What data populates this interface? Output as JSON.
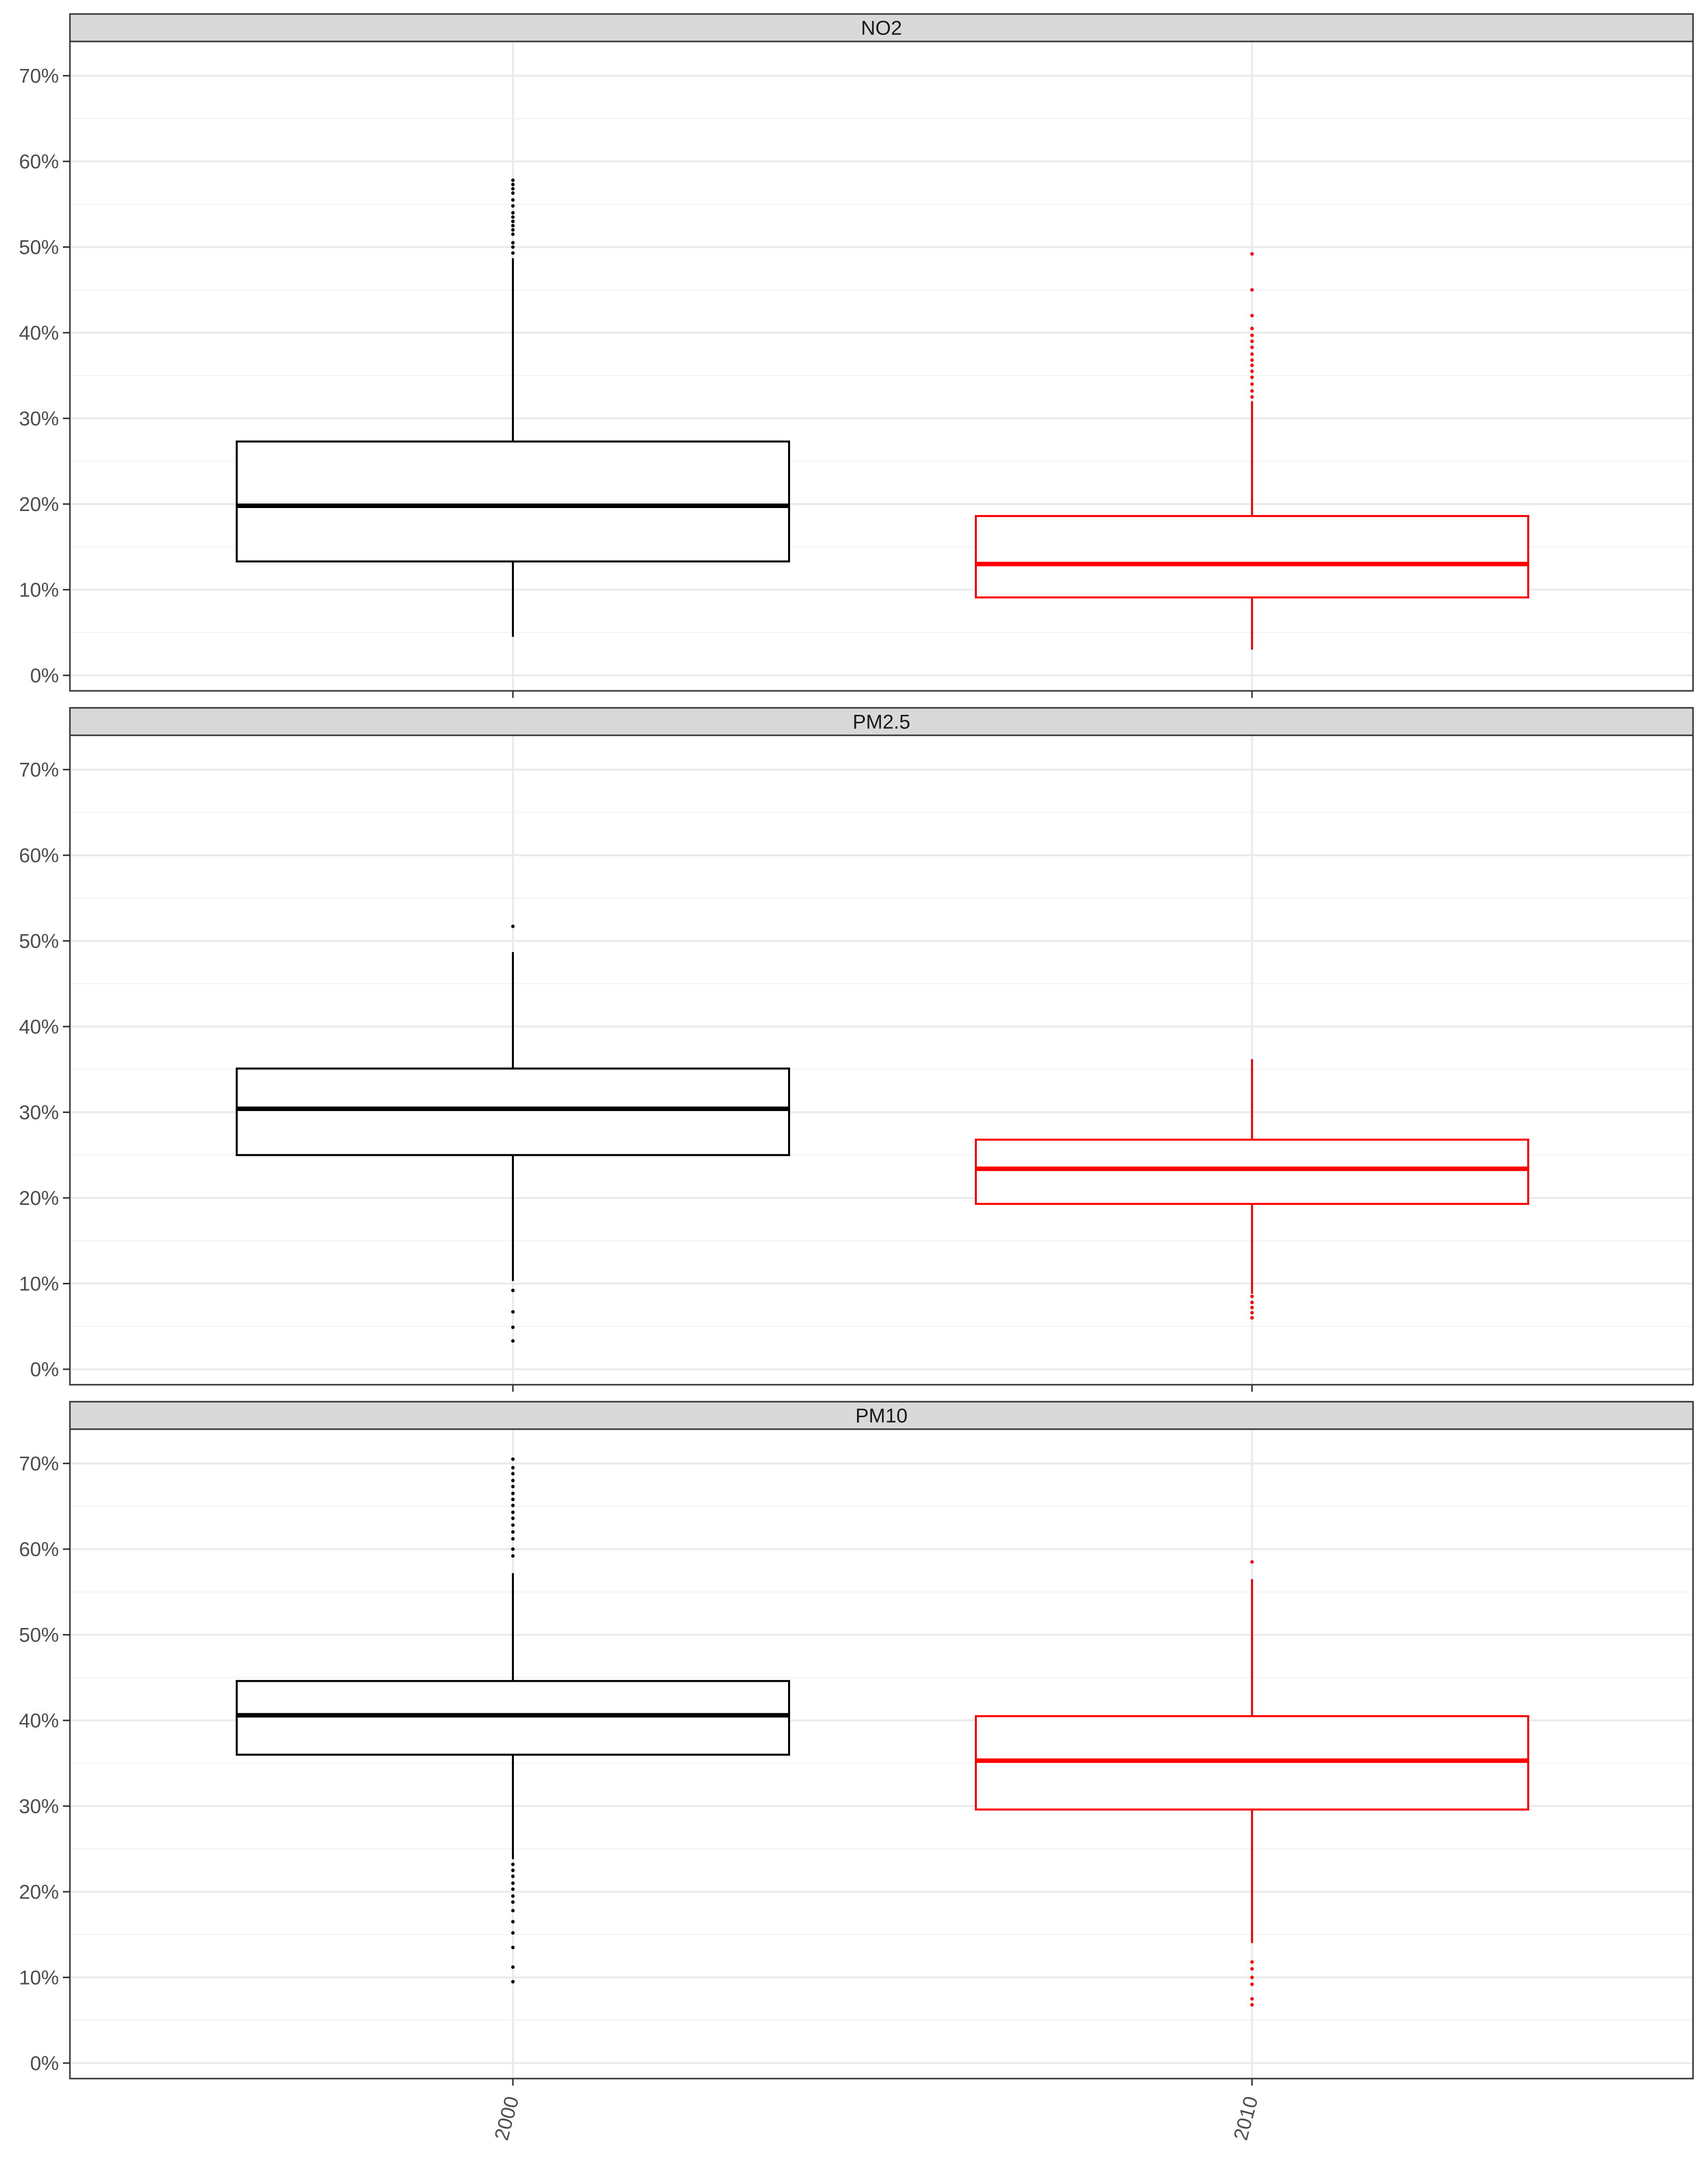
{
  "chart_data": [
    {
      "type": "boxplot",
      "title": "NO2",
      "categories": [
        "2000",
        "2010"
      ],
      "ylim": [
        0,
        0.74
      ],
      "yticks": [
        0,
        0.1,
        0.2,
        0.3,
        0.4,
        0.5,
        0.6,
        0.7
      ],
      "ytick_labels": [
        "0%",
        "10%",
        "20%",
        "30%",
        "40%",
        "50%",
        "60%",
        "70%"
      ],
      "grid": true,
      "series": [
        {
          "category": "2000",
          "color": "#000000",
          "min": 0.045,
          "q1": 0.133,
          "median": 0.198,
          "q3": 0.273,
          "max": 0.487,
          "outliers": [
            0.493,
            0.5,
            0.505,
            0.515,
            0.52,
            0.525,
            0.53,
            0.535,
            0.54,
            0.548,
            0.555,
            0.563,
            0.568,
            0.573,
            0.578
          ]
        },
        {
          "category": "2010",
          "color": "#ff0000",
          "min": 0.03,
          "q1": 0.091,
          "median": 0.13,
          "q3": 0.186,
          "max": 0.32,
          "outliers": [
            0.325,
            0.332,
            0.34,
            0.348,
            0.355,
            0.362,
            0.368,
            0.375,
            0.383,
            0.39,
            0.397,
            0.405,
            0.42,
            0.45,
            0.492
          ]
        }
      ]
    },
    {
      "type": "boxplot",
      "title": "PM2.5",
      "categories": [
        "2000",
        "2010"
      ],
      "ylim": [
        0,
        0.74
      ],
      "yticks": [
        0,
        0.1,
        0.2,
        0.3,
        0.4,
        0.5,
        0.6,
        0.7
      ],
      "ytick_labels": [
        "0%",
        "10%",
        "20%",
        "30%",
        "40%",
        "50%",
        "60%",
        "70%"
      ],
      "grid": true,
      "series": [
        {
          "category": "2000",
          "color": "#000000",
          "min": 0.103,
          "q1": 0.25,
          "median": 0.304,
          "q3": 0.351,
          "max": 0.487,
          "outliers": [
            0.033,
            0.049,
            0.067,
            0.092,
            0.517
          ]
        },
        {
          "category": "2010",
          "color": "#ff0000",
          "min": 0.088,
          "q1": 0.193,
          "median": 0.234,
          "q3": 0.268,
          "max": 0.362,
          "outliers": [
            0.06,
            0.066,
            0.072,
            0.078,
            0.085
          ]
        }
      ]
    },
    {
      "type": "boxplot",
      "title": "PM10",
      "categories": [
        "2000",
        "2010"
      ],
      "ylim": [
        0,
        0.74
      ],
      "yticks": [
        0,
        0.1,
        0.2,
        0.3,
        0.4,
        0.5,
        0.6,
        0.7
      ],
      "ytick_labels": [
        "0%",
        "10%",
        "20%",
        "30%",
        "40%",
        "50%",
        "60%",
        "70%"
      ],
      "xtick_labels": [
        "2000",
        "2010"
      ],
      "grid": true,
      "series": [
        {
          "category": "2000",
          "color": "#000000",
          "min": 0.238,
          "q1": 0.36,
          "median": 0.406,
          "q3": 0.446,
          "max": 0.572,
          "outliers": [
            0.095,
            0.112,
            0.135,
            0.152,
            0.165,
            0.178,
            0.188,
            0.195,
            0.203,
            0.21,
            0.218,
            0.225,
            0.232,
            0.592,
            0.6,
            0.612,
            0.62,
            0.628,
            0.636,
            0.643,
            0.651,
            0.658,
            0.665,
            0.673,
            0.68,
            0.688,
            0.695,
            0.705
          ]
        },
        {
          "category": "2010",
          "color": "#ff0000",
          "min": 0.14,
          "q1": 0.296,
          "median": 0.353,
          "q3": 0.405,
          "max": 0.565,
          "outliers": [
            0.068,
            0.075,
            0.092,
            0.1,
            0.11,
            0.118,
            0.585
          ]
        }
      ]
    }
  ]
}
